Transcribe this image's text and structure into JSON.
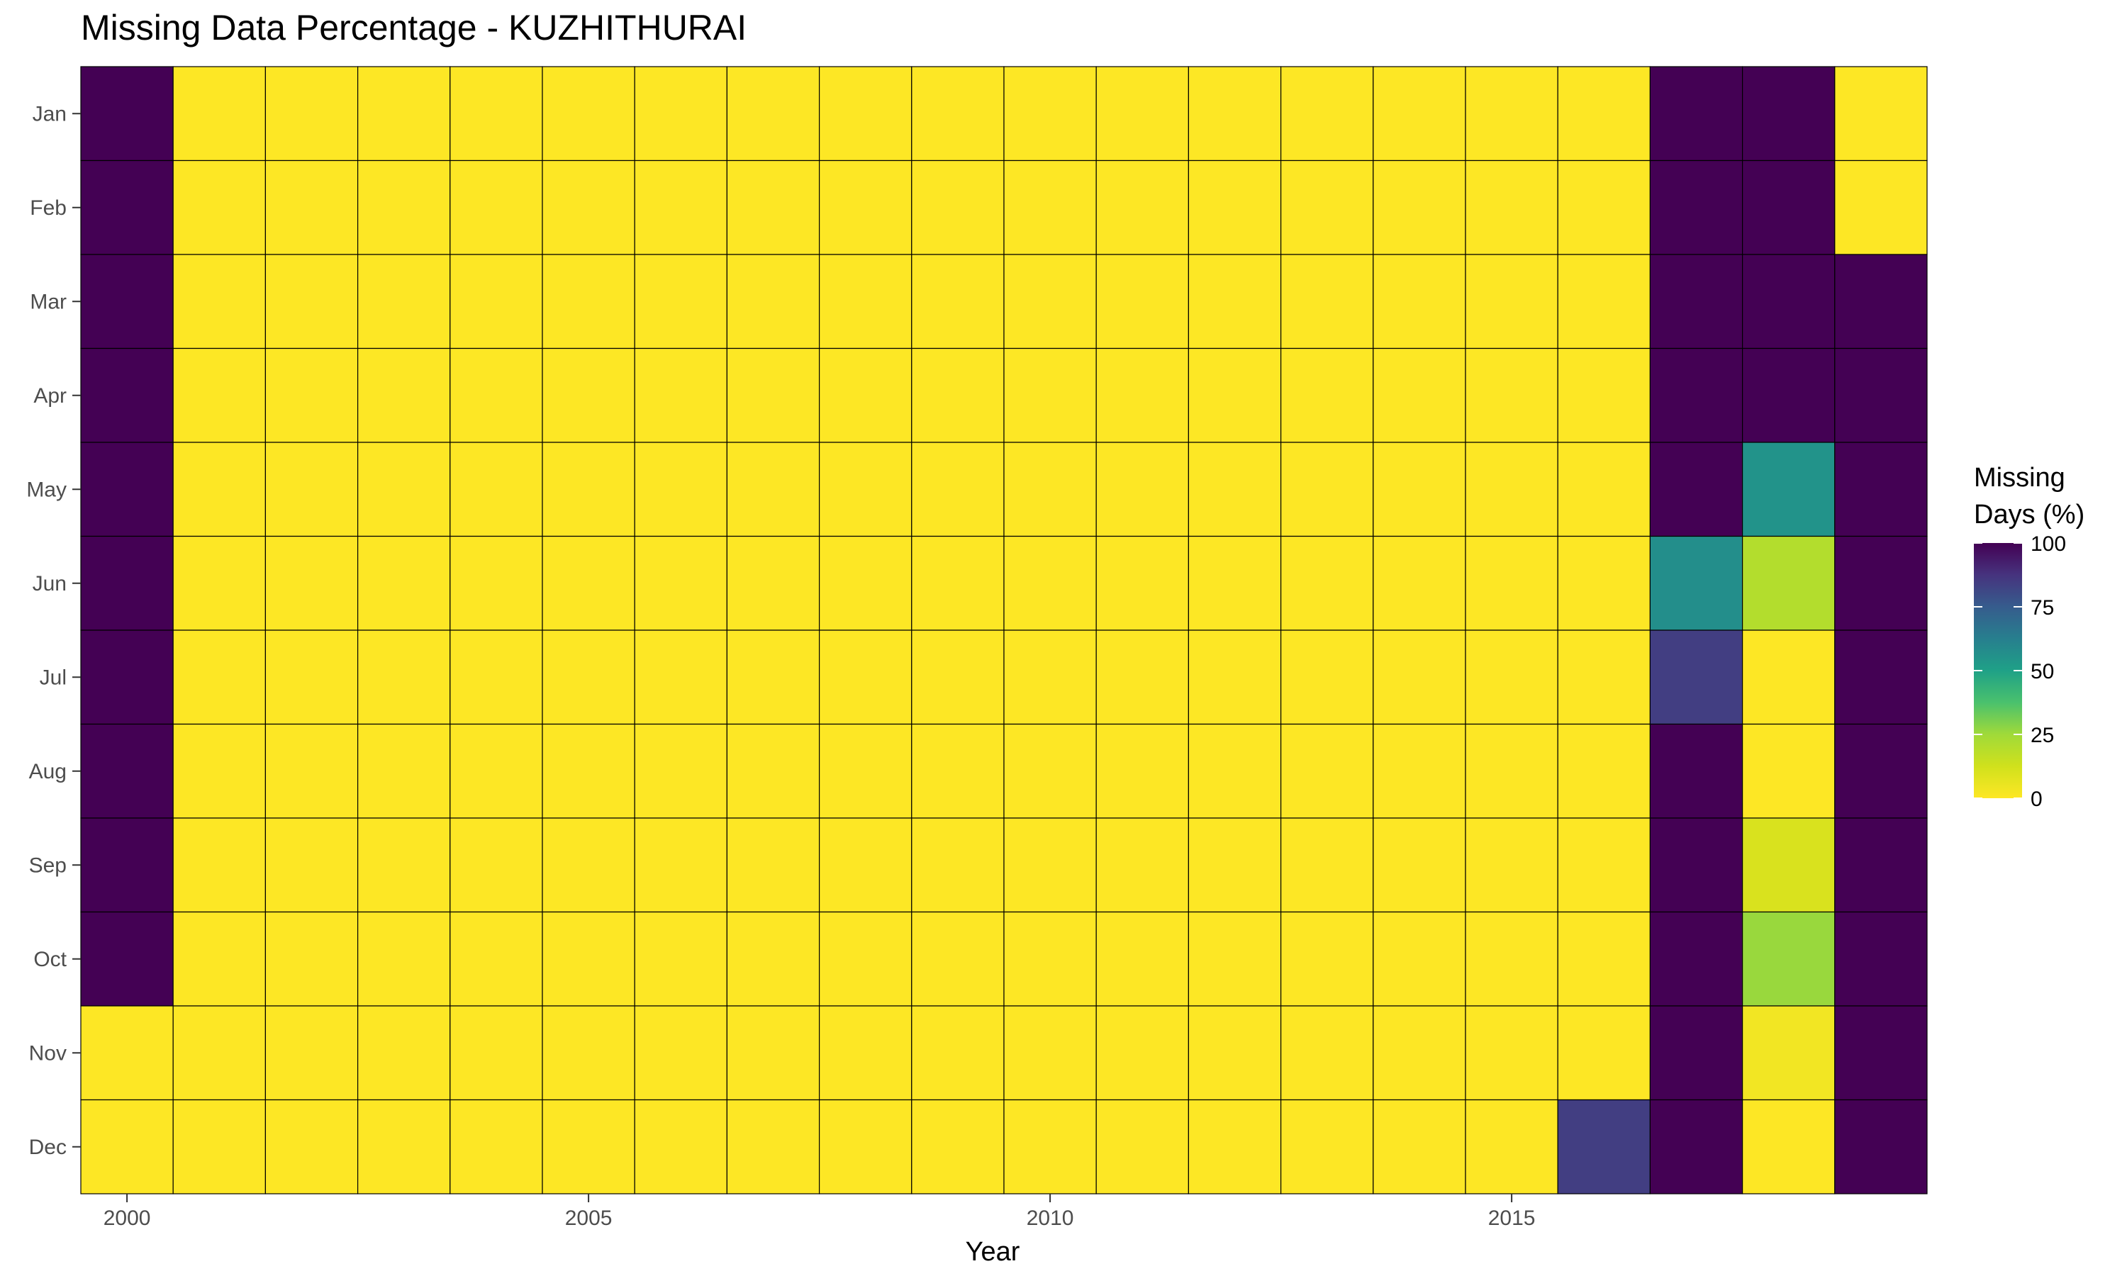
{
  "chart_data": {
    "type": "heatmap",
    "title": "Missing Data Percentage - KUZHITHURAI",
    "xlabel": "Year",
    "ylabel": "",
    "x": [
      2000,
      2001,
      2002,
      2003,
      2004,
      2005,
      2006,
      2007,
      2008,
      2009,
      2010,
      2011,
      2012,
      2013,
      2014,
      2015,
      2016,
      2017,
      2018,
      2019
    ],
    "x_ticks": [
      2000,
      2005,
      2010,
      2015
    ],
    "y": [
      "Jan",
      "Feb",
      "Mar",
      "Apr",
      "May",
      "Jun",
      "Jul",
      "Aug",
      "Sep",
      "Oct",
      "Nov",
      "Dec"
    ],
    "values": [
      [
        100,
        0,
        0,
        0,
        0,
        0,
        0,
        0,
        0,
        0,
        0,
        0,
        0,
        0,
        0,
        0,
        0,
        100,
        100,
        0
      ],
      [
        100,
        0,
        0,
        0,
        0,
        0,
        0,
        0,
        0,
        0,
        0,
        0,
        0,
        0,
        0,
        0,
        0,
        100,
        100,
        0
      ],
      [
        100,
        0,
        0,
        0,
        0,
        0,
        0,
        0,
        0,
        0,
        0,
        0,
        0,
        0,
        0,
        0,
        0,
        100,
        100,
        100
      ],
      [
        100,
        0,
        0,
        0,
        0,
        0,
        0,
        0,
        0,
        0,
        0,
        0,
        0,
        0,
        0,
        0,
        0,
        100,
        100,
        100
      ],
      [
        100,
        0,
        0,
        0,
        0,
        0,
        0,
        0,
        0,
        0,
        0,
        0,
        0,
        0,
        0,
        0,
        0,
        100,
        55,
        100
      ],
      [
        100,
        0,
        0,
        0,
        0,
        0,
        0,
        0,
        0,
        0,
        0,
        0,
        0,
        0,
        0,
        0,
        0,
        57,
        20,
        100
      ],
      [
        100,
        0,
        0,
        0,
        0,
        0,
        0,
        0,
        0,
        0,
        0,
        0,
        0,
        0,
        0,
        0,
        0,
        84,
        0,
        100
      ],
      [
        100,
        0,
        0,
        0,
        0,
        0,
        0,
        0,
        0,
        0,
        0,
        0,
        0,
        0,
        0,
        0,
        0,
        100,
        0,
        100
      ],
      [
        100,
        0,
        0,
        0,
        0,
        0,
        0,
        0,
        0,
        0,
        0,
        0,
        0,
        0,
        0,
        0,
        0,
        100,
        10,
        100
      ],
      [
        100,
        0,
        0,
        0,
        0,
        0,
        0,
        0,
        0,
        0,
        0,
        0,
        0,
        0,
        0,
        0,
        0,
        100,
        26,
        100
      ],
      [
        0,
        0,
        0,
        0,
        0,
        0,
        0,
        0,
        0,
        0,
        0,
        0,
        0,
        0,
        0,
        0,
        0,
        100,
        3,
        100
      ],
      [
        0,
        0,
        0,
        0,
        0,
        0,
        0,
        0,
        0,
        0,
        0,
        0,
        0,
        0,
        0,
        0,
        84,
        100,
        0,
        100
      ]
    ],
    "colorscale": "viridis-reversed",
    "color_range": [
      0,
      100
    ],
    "legend": {
      "title_lines": [
        "Missing",
        "Days (%)"
      ],
      "ticks": [
        100,
        75,
        50,
        25,
        0
      ],
      "placement": "right"
    },
    "grid": false
  }
}
